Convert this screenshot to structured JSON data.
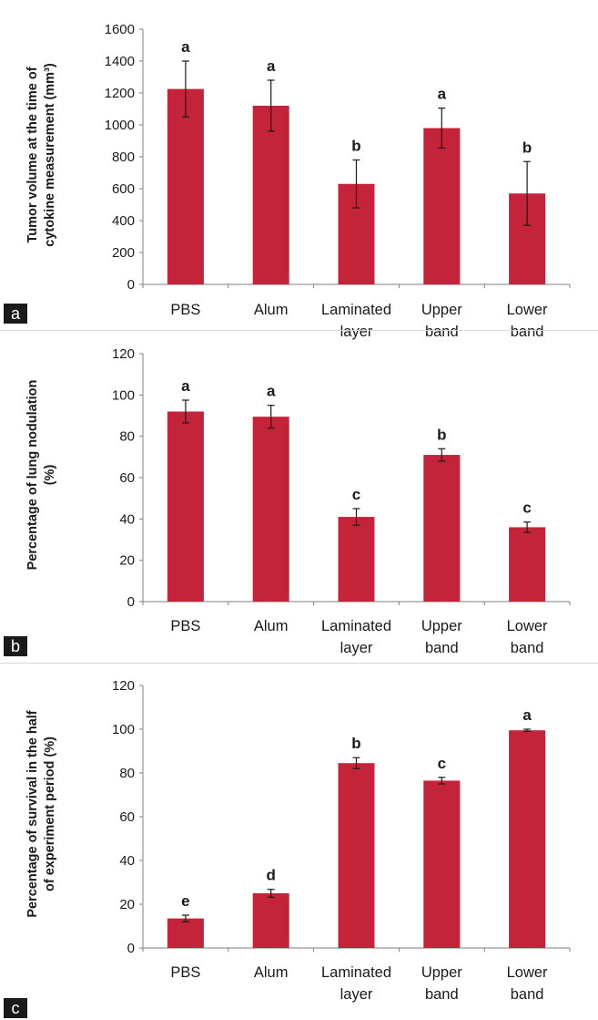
{
  "chart_data": [
    {
      "panel": "a",
      "type": "bar",
      "categories": [
        [
          "PBS"
        ],
        [
          "Alum"
        ],
        [
          "Laminated",
          "layer"
        ],
        [
          "Upper",
          "band"
        ],
        [
          "Lower",
          "band"
        ]
      ],
      "values": [
        1225,
        1120,
        630,
        980,
        570
      ],
      "error": [
        175,
        160,
        150,
        125,
        200
      ],
      "group_letters": [
        "a",
        "a",
        "b",
        "a",
        "b"
      ],
      "ylabel_lines": [
        "Tumor volume at the time of",
        "cytokine measurement (mm³)"
      ],
      "xlabel": "",
      "ylim": [
        0,
        1600
      ],
      "yticks": [
        0,
        200,
        400,
        600,
        800,
        1000,
        1200,
        1400,
        1600
      ],
      "bar_color": "#c3243a",
      "grid": false,
      "legend": "none"
    },
    {
      "panel": "b",
      "type": "bar",
      "categories": [
        [
          "PBS"
        ],
        [
          "Alum"
        ],
        [
          "Laminated",
          "layer"
        ],
        [
          "Upper",
          "band"
        ],
        [
          "Lower",
          "band"
        ]
      ],
      "values": [
        92,
        89.5,
        41,
        71,
        36
      ],
      "error": [
        5.5,
        5.5,
        4,
        3,
        2.5
      ],
      "group_letters": [
        "a",
        "a",
        "c",
        "b",
        "c"
      ],
      "ylabel_lines": [
        "Percentage of lung nodulation",
        "(%)"
      ],
      "xlabel": "",
      "ylim": [
        0,
        120
      ],
      "yticks": [
        0,
        20,
        40,
        60,
        80,
        100,
        120
      ],
      "bar_color": "#c3243a",
      "grid": false,
      "legend": "none"
    },
    {
      "panel": "c",
      "type": "bar",
      "categories": [
        [
          "PBS"
        ],
        [
          "Alum"
        ],
        [
          "Laminated",
          "layer"
        ],
        [
          "Upper",
          "band"
        ],
        [
          "Lower",
          "band"
        ]
      ],
      "values": [
        13.5,
        25,
        84.5,
        76.5,
        99.5
      ],
      "error": [
        1.5,
        1.8,
        2.5,
        1.5,
        0.5
      ],
      "group_letters": [
        "e",
        "d",
        "b",
        "c",
        "a"
      ],
      "ylabel_lines": [
        "Percentage of survival in the half",
        "of experiment period (%)"
      ],
      "xlabel": "",
      "ylim": [
        0,
        120
      ],
      "yticks": [
        0,
        20,
        40,
        60,
        80,
        100,
        120
      ],
      "bar_color": "#c3243a",
      "grid": false,
      "legend": "none"
    }
  ]
}
